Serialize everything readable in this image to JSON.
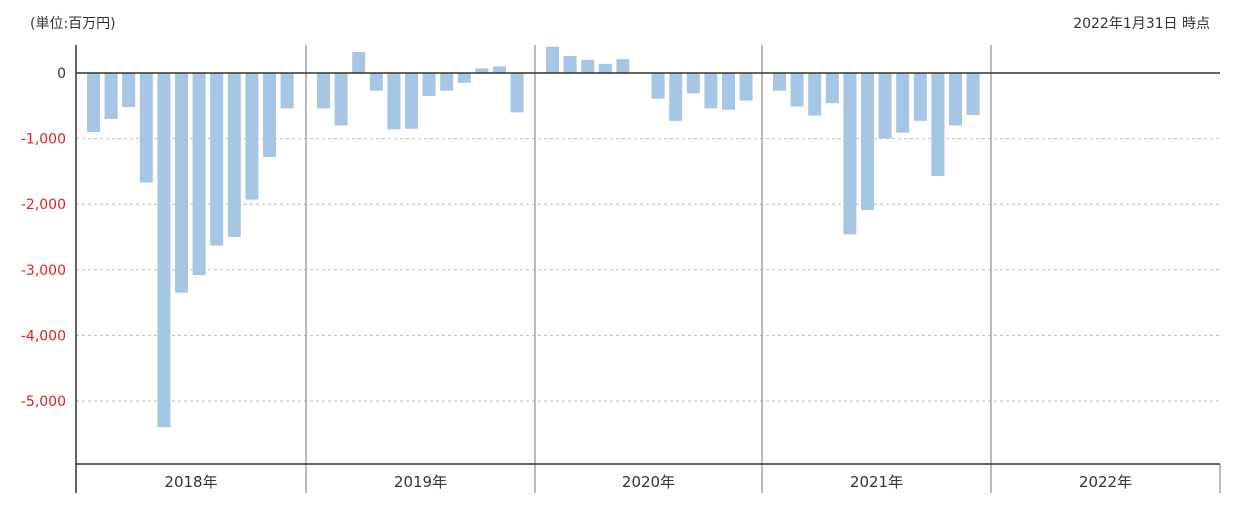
{
  "header": {
    "unit_label": "(単位:百万円)",
    "as_of": "2022年1月31日 時点"
  },
  "chart_data": {
    "type": "bar",
    "title": "",
    "xlabel": "",
    "ylabel": "",
    "unit": "百万円",
    "ylim": [
      -6000,
      500
    ],
    "yticks": [
      0,
      -1000,
      -2000,
      -3000,
      -4000,
      -5000
    ],
    "ytick_labels": [
      "0",
      "-1,000",
      "-2,000",
      "-3,000",
      "-4,000",
      "-5,000"
    ],
    "grid": "horizontal dashed",
    "colors": {
      "bar": "#a6c6e4",
      "negative_tick": "#e02020",
      "zero_tick": "#333333",
      "axis": "#333333",
      "grid": "#bbbbbb",
      "year_divider": "#777777"
    },
    "years": [
      {
        "label": "2018年",
        "values": [
          -900,
          -700,
          -520,
          -1670,
          -5400,
          -3350,
          -3080,
          -2630,
          -2500,
          -1930,
          -1280,
          -540
        ]
      },
      {
        "label": "2019年",
        "values": [
          -540,
          -800,
          320,
          -270,
          -860,
          -850,
          -350,
          -270,
          -150,
          70,
          100,
          -600
        ]
      },
      {
        "label": "2020年",
        "values": [
          400,
          260,
          200,
          140,
          210,
          null,
          -390,
          -730,
          -310,
          -540,
          -560,
          -420
        ]
      },
      {
        "label": "2021年",
        "values": [
          -270,
          -510,
          -650,
          -460,
          -2460,
          -2090,
          -1000,
          -910,
          -730,
          -1570,
          -800,
          -640
        ]
      },
      {
        "label": "2022年",
        "values": [
          null,
          null,
          null,
          null,
          null,
          null,
          null,
          null,
          null,
          null,
          null,
          null
        ]
      }
    ]
  }
}
